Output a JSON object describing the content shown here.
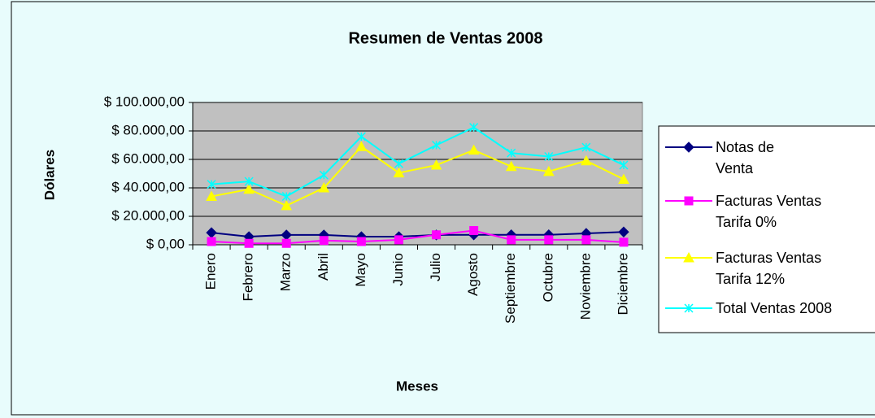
{
  "chart_data": {
    "type": "line",
    "title": "Resumen de Ventas 2008",
    "x_label": "Meses",
    "y_label": "Dólares",
    "categories": [
      "Enero",
      "Febrero",
      "Marzo",
      "Abril",
      "Mayo",
      "Junio",
      "Julio",
      "Agosto",
      "Septiembre",
      "Octubre",
      "Noviembre",
      "Diciembre"
    ],
    "series": [
      {
        "name": "Notas de Venta",
        "color": "#000080",
        "marker": "diamond",
        "values": [
          8500,
          5700,
          6900,
          6900,
          5700,
          5700,
          6900,
          7000,
          7000,
          7000,
          8000,
          9000
        ]
      },
      {
        "name": "Facturas Ventas Tarifa 0%",
        "color": "#ff00ff",
        "marker": "square",
        "values": [
          2300,
          1000,
          1000,
          3000,
          2300,
          3500,
          7000,
          10000,
          3500,
          3500,
          3500,
          1800
        ]
      },
      {
        "name": "Facturas Ventas Tarifa 12%",
        "color": "#ffff00",
        "marker": "triangle",
        "values": [
          34000,
          39000,
          27500,
          40000,
          69000,
          50500,
          56000,
          66500,
          55000,
          51500,
          59000,
          46000
        ]
      },
      {
        "name": "Total Ventas 2008",
        "color": "#00ffff",
        "marker": "x",
        "values": [
          42500,
          44500,
          34000,
          49000,
          76000,
          57000,
          70000,
          82500,
          64500,
          62000,
          68500,
          56000
        ]
      }
    ],
    "ylim": [
      0,
      100000
    ],
    "yticks": [
      {
        "value": 0,
        "label": "$ 0,00"
      },
      {
        "value": 20000,
        "label": "$ 20.000,00"
      },
      {
        "value": 40000,
        "label": "$ 40.000,00"
      },
      {
        "value": 60000,
        "label": "$ 60.000,00"
      },
      {
        "value": 80000,
        "label": "$ 80.000,00"
      },
      {
        "value": 100000,
        "label": "$ 100.000,00"
      }
    ],
    "grid": true,
    "legend": "right"
  }
}
